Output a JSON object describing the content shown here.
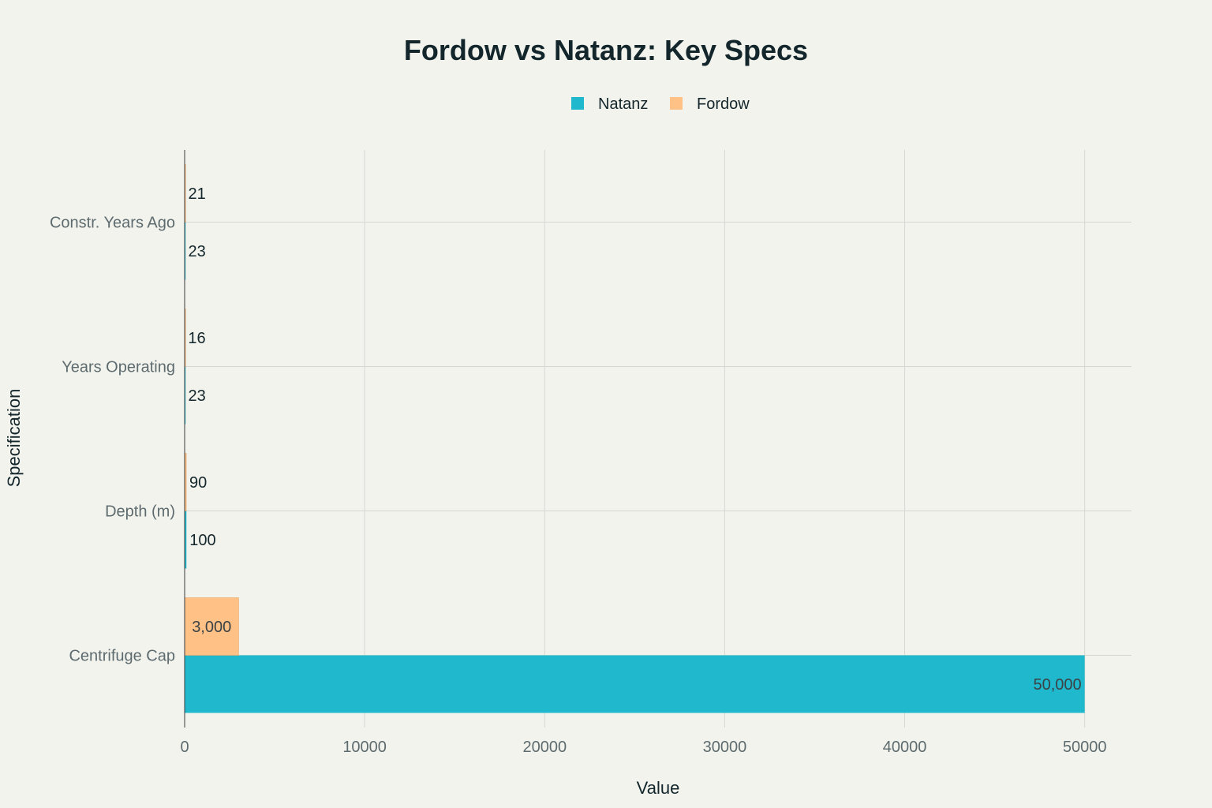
{
  "chart_data": {
    "type": "bar",
    "orientation": "horizontal",
    "title": "Fordow vs Natanz: Key Specs",
    "xlabel": "Value",
    "ylabel": "Specification",
    "categories": [
      "Centrifuge Cap",
      "Depth (m)",
      "Years Operating",
      "Constr. Years Ago"
    ],
    "series": [
      {
        "name": "Natanz",
        "color": "#20b8cd",
        "values": [
          50000,
          100,
          23,
          23
        ],
        "labels": [
          "50,000",
          "100",
          "23",
          "23"
        ]
      },
      {
        "name": "Fordow",
        "color": "#ffc185",
        "values": [
          3000,
          90,
          16,
          21
        ],
        "labels": [
          "3,000",
          "90",
          "16",
          "21"
        ]
      }
    ],
    "xlim": [
      0,
      52600
    ],
    "xticks": [
      0,
      10000,
      20000,
      30000,
      40000,
      50000
    ],
    "xtick_labels": [
      "0",
      "10000",
      "20000",
      "30000",
      "40000",
      "50000"
    ],
    "grid": true,
    "legend_position": "top-center"
  }
}
